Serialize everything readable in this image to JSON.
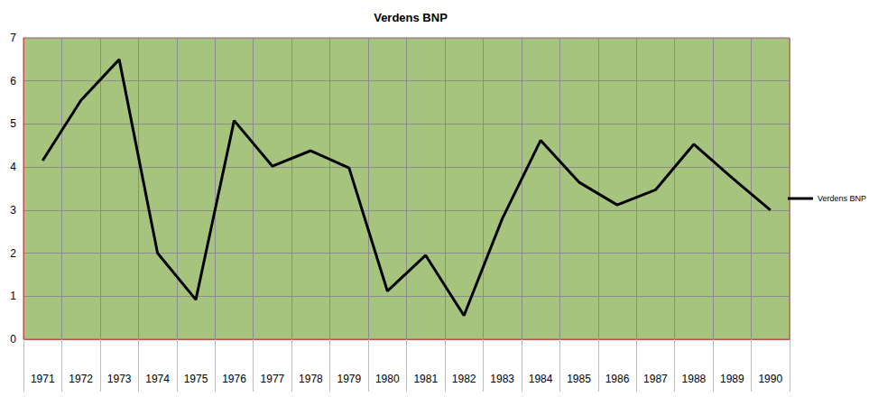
{
  "chart_data": {
    "type": "line",
    "title": "Verdens BNP",
    "categories": [
      "1971",
      "1972",
      "1973",
      "1974",
      "1975",
      "1976",
      "1977",
      "1978",
      "1979",
      "1980",
      "1981",
      "1982",
      "1983",
      "1984",
      "1985",
      "1986",
      "1987",
      "1988",
      "1989",
      "1990"
    ],
    "series": [
      {
        "name": "Verdens BNP",
        "color": "#000000",
        "values": [
          4.15,
          5.55,
          6.5,
          2.0,
          0.92,
          5.08,
          4.02,
          4.38,
          3.98,
          1.12,
          1.95,
          0.55,
          2.8,
          4.62,
          3.65,
          3.12,
          3.47,
          4.53,
          3.75,
          3.0
        ]
      }
    ],
    "ylim": [
      0,
      7
    ],
    "yticks": [
      0,
      1,
      2,
      3,
      4,
      5,
      6,
      7
    ],
    "grid": true,
    "legend": "right"
  }
}
